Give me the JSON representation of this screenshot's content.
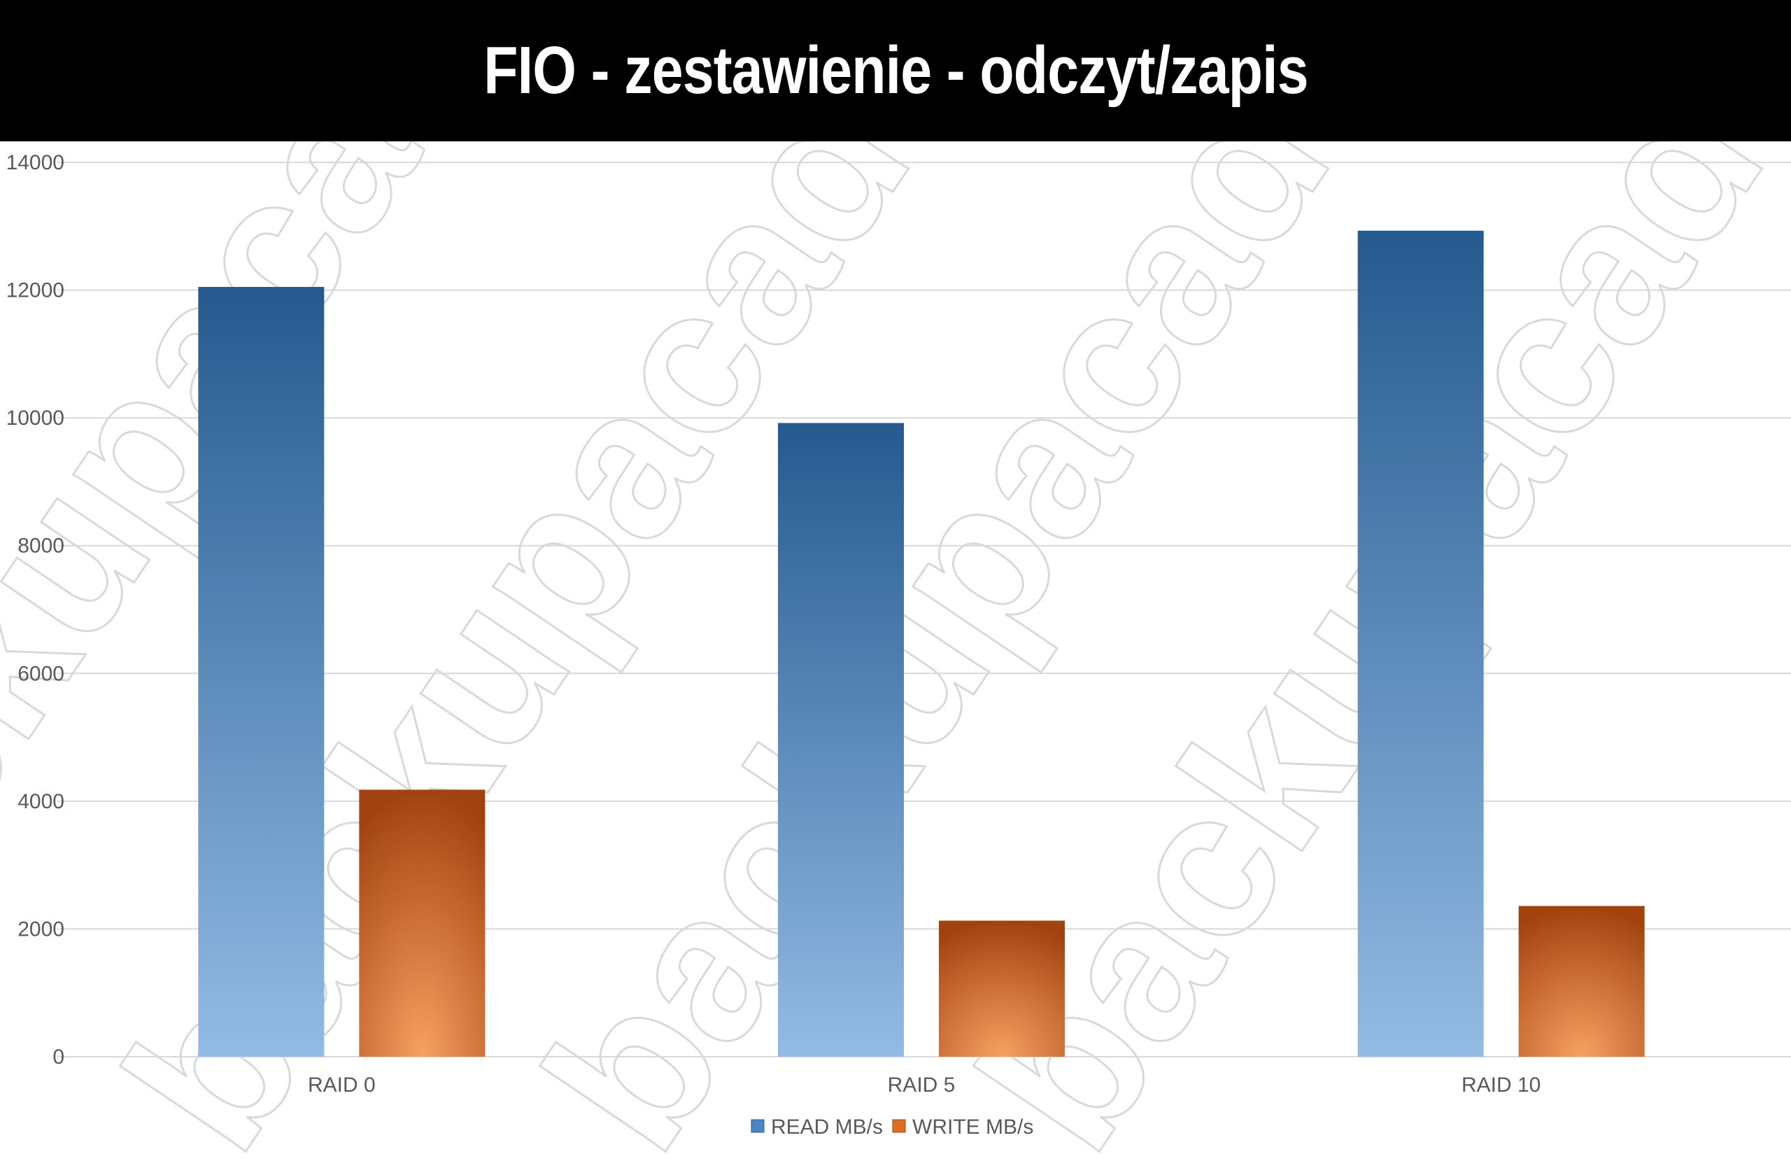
{
  "title": "FIO - zestawienie - odczyt/zapis",
  "watermark": "backupacademy.pl",
  "colors": {
    "read_top": "#255a8f",
    "read_bottom": "#93bbe4",
    "write_top": "#a2430f",
    "write_bottom": "#f8a062",
    "grid": "#d9d9d9",
    "axis_text": "#595959"
  },
  "chart_data": {
    "type": "bar",
    "categories": [
      "RAID 0",
      "RAID 5",
      "RAID 10"
    ],
    "series": [
      {
        "name": "READ MB/s",
        "values": [
          12050,
          9920,
          12930
        ]
      },
      {
        "name": "WRITE MB/s",
        "values": [
          4180,
          2130,
          2360
        ]
      }
    ],
    "ylim": [
      0,
      14000
    ],
    "yticks": [
      "0",
      "2000",
      "4000",
      "6000",
      "8000",
      "10000",
      "12000",
      "14000"
    ],
    "grid": true,
    "legend_position": "bottom"
  }
}
